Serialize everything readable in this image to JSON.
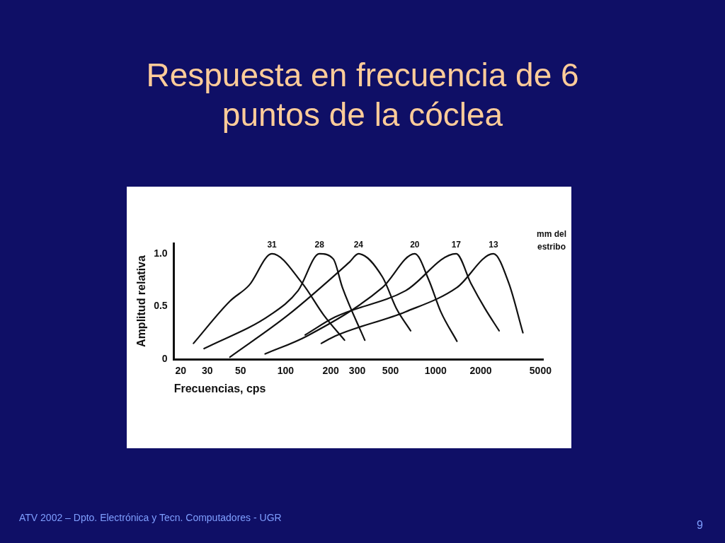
{
  "chart_data": {
    "type": "line",
    "title": "Respuesta en frecuencia de 6 puntos de la cóclea",
    "xlabel": "Frecuencias, cps",
    "ylabel": "Amplitud relativa",
    "log": "x",
    "xlim": [
      18,
      5200
    ],
    "xticks": [
      20,
      30,
      50,
      100,
      200,
      300,
      500,
      1000,
      2000,
      5000
    ],
    "ylim": [
      0,
      1.1
    ],
    "yticks": [
      0,
      {
        "value": 0.5,
        "label": "0.5"
      },
      {
        "value": 1,
        "label": "1.0"
      }
    ],
    "grid": false,
    "legend": false,
    "marker": "none",
    "line_style": "solid",
    "series": [
      {
        "name": "31",
        "color": "#111111",
        "x": [
          24.3,
          42.5,
          57,
          81,
          129,
          179,
          247
        ],
        "values": [
          0.15,
          0.55,
          0.7,
          1.0,
          0.72,
          0.42,
          0.18
        ]
      },
      {
        "name": "28",
        "color": "#111111",
        "x": [
          28.6,
          79,
          121,
          168,
          208,
          239,
          337
        ],
        "values": [
          0.1,
          0.42,
          0.65,
          1.0,
          0.95,
          0.68,
          0.18
        ]
      },
      {
        "name": "24",
        "color": "#111111",
        "x": [
          42.5,
          104,
          266,
          306,
          442,
          548,
          681
        ],
        "values": [
          0.02,
          0.42,
          0.92,
          1.0,
          0.78,
          0.48,
          0.27
        ]
      },
      {
        "name": "20",
        "color": "#111111",
        "x": [
          73,
          139,
          442,
          726,
          901,
          1082,
          1387
        ],
        "values": [
          0.05,
          0.22,
          0.68,
          1.0,
          0.75,
          0.45,
          0.17
        ]
      },
      {
        "name": "17",
        "color": "#111111",
        "x": [
          135,
          214,
          631,
          1371,
          1718,
          2133,
          2649
        ],
        "values": [
          0.23,
          0.4,
          0.65,
          1.0,
          0.72,
          0.48,
          0.27
        ]
      },
      {
        "name": "13",
        "color": "#111111",
        "x": [
          173,
          214,
          631,
          1387,
          2427,
          3076,
          3819
        ],
        "values": [
          0.15,
          0.22,
          0.45,
          0.68,
          1.0,
          0.72,
          0.25
        ]
      }
    ],
    "annotations": [
      "mm del estribo",
      "ATV 2002 – Dpto. Electrónica y Tecn. Computadores - UGR",
      "9"
    ]
  }
}
